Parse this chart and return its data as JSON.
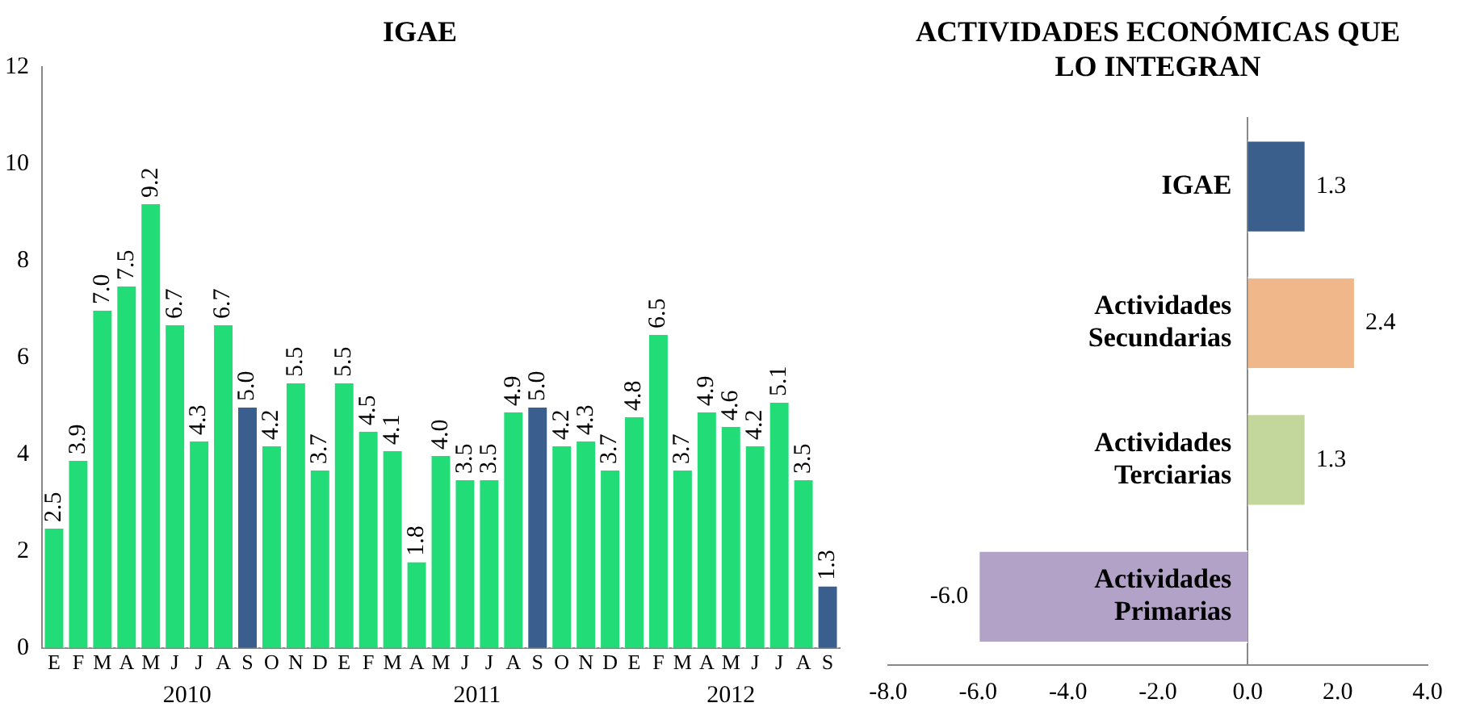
{
  "chart_data": [
    {
      "type": "bar",
      "title": "IGAE",
      "categories": [
        "E",
        "F",
        "M",
        "A",
        "M",
        "J",
        "J",
        "A",
        "S",
        "O",
        "N",
        "D",
        "E",
        "F",
        "M",
        "A",
        "M",
        "J",
        "J",
        "A",
        "S",
        "O",
        "N",
        "D",
        "E",
        "F",
        "M",
        "A",
        "M",
        "J",
        "J",
        "A",
        "S"
      ],
      "values": [
        2.5,
        3.9,
        7.0,
        7.5,
        9.2,
        6.7,
        4.3,
        6.7,
        5.0,
        4.2,
        5.5,
        3.7,
        5.5,
        4.5,
        4.1,
        1.8,
        4.0,
        3.5,
        3.5,
        4.9,
        5.0,
        4.2,
        4.3,
        3.7,
        4.8,
        6.5,
        3.7,
        4.9,
        4.6,
        4.2,
        5.1,
        3.5,
        1.3
      ],
      "value_labels": [
        "2.5",
        "3.9",
        "7.0",
        "7.5",
        "9.2",
        "6.7",
        "4.3",
        "6.7",
        "5.0",
        "4.2",
        "5.5",
        "3.7",
        "5.5",
        "4.5",
        "4.1",
        "1.8",
        "4.0",
        "3.5",
        "3.5",
        "4.9",
        "5.0",
        "4.2",
        "4.3",
        "3.7",
        "4.8",
        "6.5",
        "3.7",
        "4.9",
        "4.6",
        "4.2",
        "5.1",
        "3.5",
        "1.3"
      ],
      "colors": [
        "#22dd77",
        "#22dd77",
        "#22dd77",
        "#22dd77",
        "#22dd77",
        "#22dd77",
        "#22dd77",
        "#22dd77",
        "#3a5f8f",
        "#22dd77",
        "#22dd77",
        "#22dd77",
        "#22dd77",
        "#22dd77",
        "#22dd77",
        "#22dd77",
        "#22dd77",
        "#22dd77",
        "#22dd77",
        "#22dd77",
        "#3a5f8f",
        "#22dd77",
        "#22dd77",
        "#22dd77",
        "#22dd77",
        "#22dd77",
        "#22dd77",
        "#22dd77",
        "#22dd77",
        "#22dd77",
        "#22dd77",
        "#22dd77",
        "#3a5f8f"
      ],
      "ylim": [
        0,
        12
      ],
      "yticks": [
        0,
        2,
        4,
        6,
        8,
        10,
        12
      ],
      "grid": false,
      "legend": false,
      "annotations": [
        "2010",
        "2011",
        "2012"
      ]
    },
    {
      "type": "bar",
      "title": "ACTIVIDADES ECONÓMICAS QUE LO INTEGRAN",
      "orientation": "horizontal",
      "categories": [
        "IGAE",
        "Actividades Secundarias",
        "Actividades Terciarias",
        "Actividades Primarias"
      ],
      "values": [
        1.3,
        2.4,
        1.3,
        -6.0
      ],
      "value_labels": [
        "1.3",
        "2.4",
        "1.3",
        "-6.0"
      ],
      "colors": [
        "#3b5f8c",
        "#f0b88a",
        "#c3d69b",
        "#b3a2c7"
      ],
      "xlim": [
        -8,
        4
      ],
      "xticks": [
        {
          "value": -8,
          "label": "-8.0"
        },
        {
          "value": -6,
          "label": "-6.0"
        },
        {
          "value": -4,
          "label": "-4.0"
        },
        {
          "value": -2,
          "label": "-2.0"
        },
        {
          "value": 0,
          "label": "0.0"
        },
        {
          "value": 2,
          "label": "2.0"
        },
        {
          "value": 4,
          "label": "4.0"
        }
      ],
      "grid": false,
      "legend": false
    }
  ]
}
